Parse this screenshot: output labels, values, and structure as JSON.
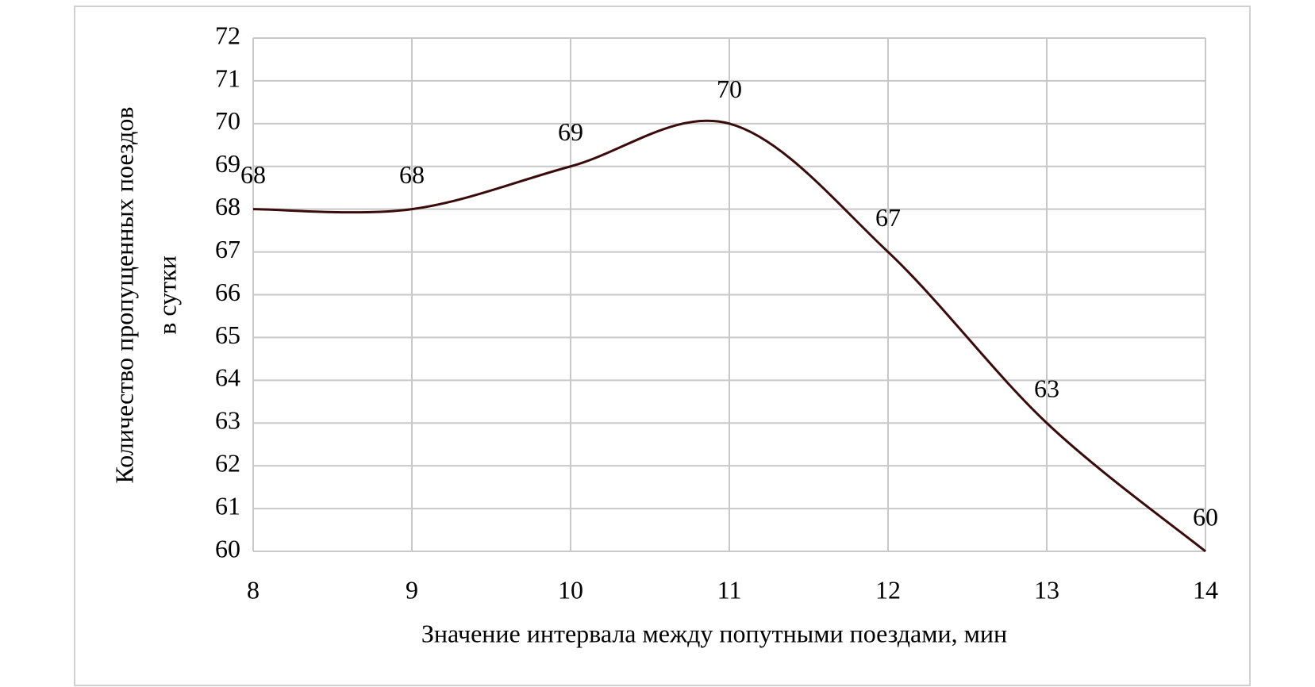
{
  "chart_data": {
    "type": "line",
    "xlabel": "Значение интервала между попутными поездами, мин",
    "ylabel": [
      "Количество пропущенных поездов",
      "в сутки"
    ],
    "x": [
      8,
      9,
      10,
      11,
      12,
      13,
      14
    ],
    "series": [
      {
        "color": "#3a0b0b",
        "values": [
          68,
          68,
          69,
          70,
          67,
          63,
          60
        ]
      }
    ],
    "xlim": [
      8,
      14
    ],
    "xticks": [
      8,
      9,
      10,
      11,
      12,
      13,
      14
    ],
    "ylim": [
      60,
      72
    ],
    "yticks": [
      60,
      61,
      62,
      63,
      64,
      65,
      66,
      67,
      68,
      69,
      70,
      71,
      72
    ],
    "grid": true,
    "smooth": true
  }
}
